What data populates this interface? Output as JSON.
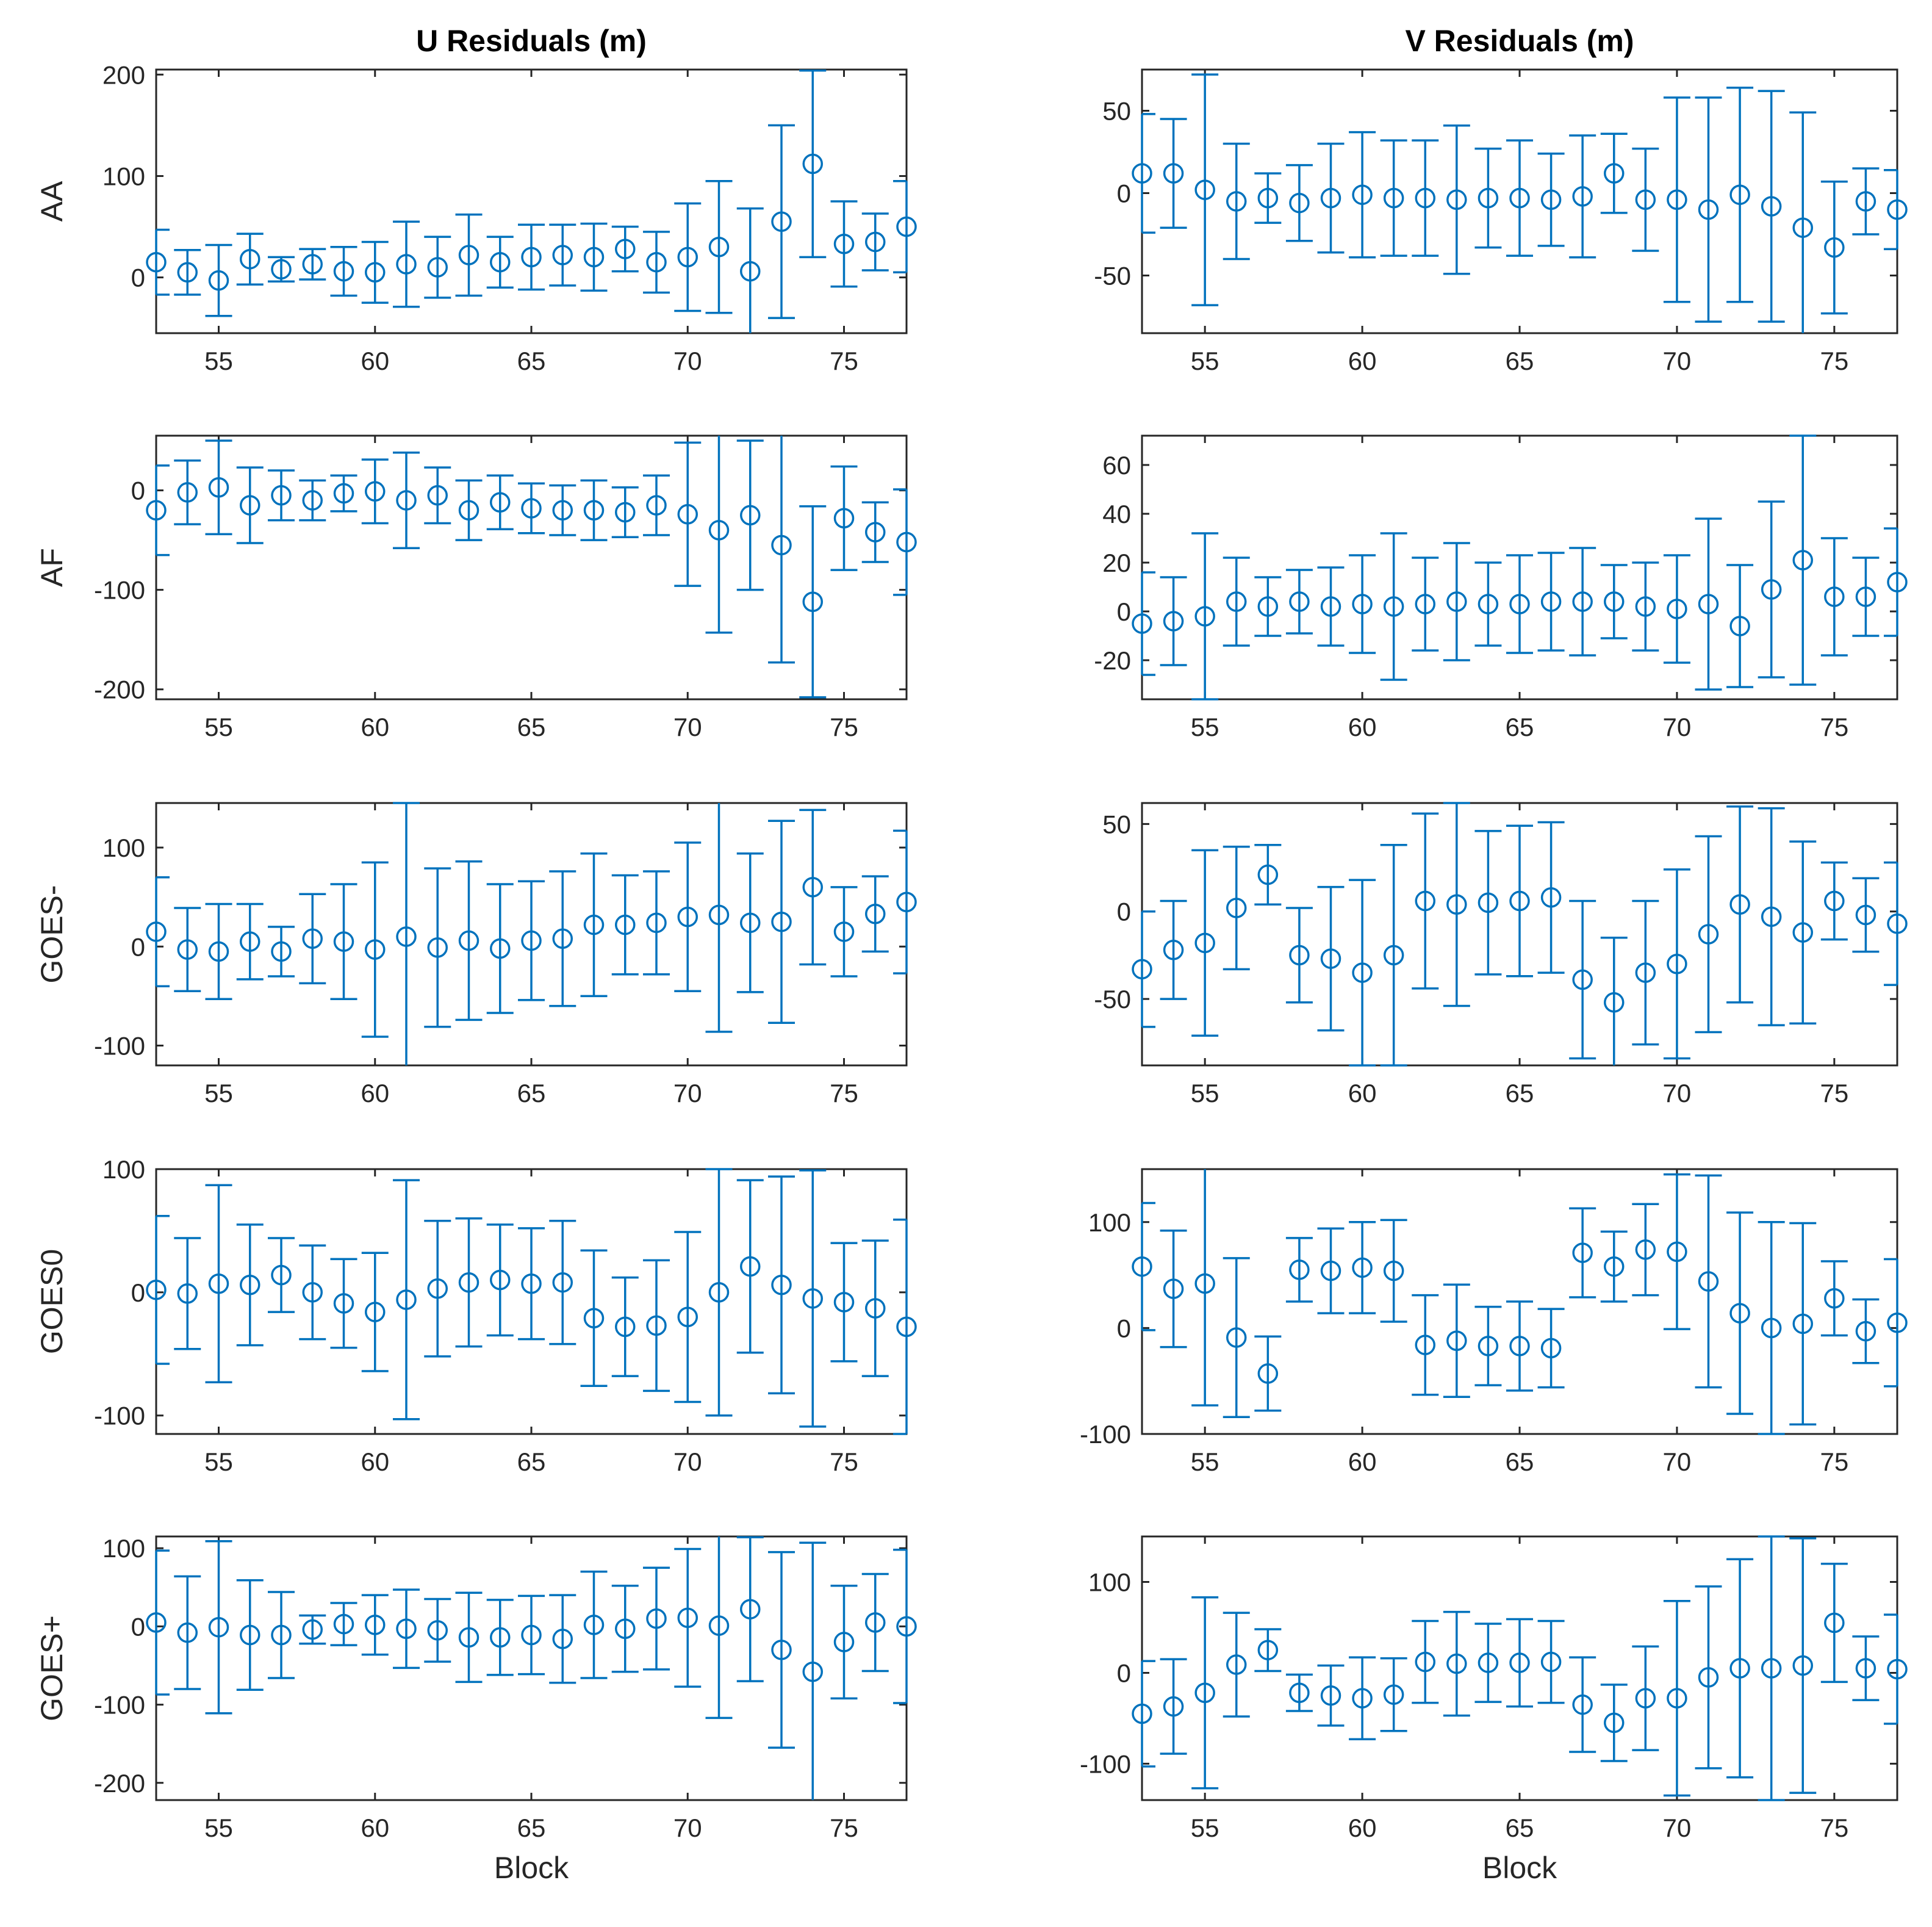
{
  "chart_data": [
    {
      "id": "u-aa",
      "type": "errorbar",
      "column_title": "U Residuals (m)",
      "ylabel": "AA",
      "xlabel": "",
      "xlim": [
        53,
        77
      ],
      "ylim": [
        -55,
        205
      ],
      "xticks": [
        55,
        60,
        65,
        70,
        75
      ],
      "yticks": [
        0,
        100,
        200
      ],
      "color": "#0072BD",
      "x": [
        53,
        54,
        55,
        56,
        57,
        58,
        59,
        60,
        61,
        62,
        63,
        64,
        65,
        66,
        67,
        68,
        69,
        70,
        71,
        72,
        73,
        74,
        75,
        76,
        77
      ],
      "y": [
        15,
        5,
        -3,
        18,
        8,
        13,
        6,
        5,
        13,
        10,
        22,
        15,
        20,
        22,
        20,
        28,
        15,
        20,
        30,
        6,
        55,
        112,
        33,
        35,
        50
      ],
      "err": [
        32,
        22,
        35,
        25,
        12,
        15,
        24,
        30,
        42,
        30,
        40,
        25,
        32,
        30,
        33,
        22,
        30,
        53,
        65,
        62,
        95,
        92,
        42,
        28,
        45
      ]
    },
    {
      "id": "v-aa",
      "type": "errorbar",
      "column_title": "V Residuals (m)",
      "ylabel": "",
      "xlabel": "",
      "xlim": [
        53,
        77
      ],
      "ylim": [
        -85,
        75
      ],
      "xticks": [
        55,
        60,
        65,
        70,
        75
      ],
      "yticks": [
        -50,
        0,
        50
      ],
      "color": "#0072BD",
      "x": [
        53,
        54,
        55,
        56,
        57,
        58,
        59,
        60,
        61,
        62,
        63,
        64,
        65,
        66,
        67,
        68,
        69,
        70,
        71,
        72,
        73,
        74,
        75,
        76,
        77
      ],
      "y": [
        12,
        12,
        2,
        -5,
        -3,
        -6,
        -3,
        -1,
        -3,
        -3,
        -4,
        -3,
        -3,
        -4,
        -2,
        12,
        -4,
        -4,
        -10,
        -1,
        -8,
        -21,
        -33,
        -5,
        -10
      ],
      "err": [
        36,
        33,
        70,
        35,
        15,
        23,
        33,
        38,
        35,
        35,
        45,
        30,
        35,
        28,
        37,
        24,
        31,
        62,
        68,
        65,
        70,
        70,
        40,
        20,
        24
      ]
    },
    {
      "id": "u-af",
      "type": "errorbar",
      "ylabel": "AF",
      "xlabel": "",
      "xlim": [
        53,
        77
      ],
      "ylim": [
        -210,
        55
      ],
      "xticks": [
        55,
        60,
        65,
        70,
        75
      ],
      "yticks": [
        -200,
        -100,
        0
      ],
      "color": "#0072BD",
      "x": [
        53,
        54,
        55,
        56,
        57,
        58,
        59,
        60,
        61,
        62,
        63,
        64,
        65,
        66,
        67,
        68,
        69,
        70,
        71,
        72,
        73,
        74,
        75,
        76,
        77
      ],
      "y": [
        -20,
        -2,
        3,
        -15,
        -5,
        -10,
        -3,
        -1,
        -10,
        -5,
        -20,
        -12,
        -18,
        -20,
        -20,
        -22,
        -15,
        -24,
        -40,
        -25,
        -55,
        -112,
        -28,
        -42,
        -52
      ],
      "err": [
        45,
        32,
        47,
        38,
        25,
        20,
        18,
        32,
        48,
        28,
        30,
        27,
        25,
        25,
        30,
        25,
        30,
        72,
        103,
        75,
        118,
        96,
        52,
        30,
        53
      ]
    },
    {
      "id": "v-af",
      "type": "errorbar",
      "ylabel": "",
      "xlabel": "",
      "xlim": [
        53,
        77
      ],
      "ylim": [
        -36,
        72
      ],
      "xticks": [
        55,
        60,
        65,
        70,
        75
      ],
      "yticks": [
        -20,
        0,
        20,
        40,
        60
      ],
      "color": "#0072BD",
      "x": [
        53,
        54,
        55,
        56,
        57,
        58,
        59,
        60,
        61,
        62,
        63,
        64,
        65,
        66,
        67,
        68,
        69,
        70,
        71,
        72,
        73,
        74,
        75,
        76,
        77
      ],
      "y": [
        -5,
        -4,
        -2,
        4,
        2,
        4,
        2,
        3,
        2,
        3,
        4,
        3,
        3,
        4,
        4,
        4,
        2,
        1,
        3,
        -6,
        9,
        21,
        6,
        6,
        12
      ],
      "err": [
        21,
        18,
        34,
        18,
        12,
        13,
        16,
        20,
        30,
        19,
        24,
        17,
        20,
        20,
        22,
        15,
        18,
        22,
        35,
        25,
        36,
        51,
        24,
        16,
        22
      ]
    },
    {
      "id": "u-goes-minus",
      "type": "errorbar",
      "ylabel": "GOES-",
      "xlabel": "",
      "xlim": [
        53,
        77
      ],
      "ylim": [
        -120,
        145
      ],
      "xticks": [
        55,
        60,
        65,
        70,
        75
      ],
      "yticks": [
        -100,
        0,
        100
      ],
      "color": "#0072BD",
      "x": [
        53,
        54,
        55,
        56,
        57,
        58,
        59,
        60,
        61,
        62,
        63,
        64,
        65,
        66,
        67,
        68,
        69,
        70,
        71,
        72,
        73,
        74,
        75,
        76,
        77
      ],
      "y": [
        15,
        -3,
        -5,
        5,
        -5,
        8,
        5,
        -3,
        10,
        -1,
        6,
        -2,
        6,
        8,
        22,
        22,
        24,
        30,
        32,
        24,
        25,
        60,
        15,
        33,
        45
      ],
      "err": [
        55,
        42,
        48,
        38,
        25,
        45,
        58,
        88,
        135,
        80,
        80,
        65,
        60,
        68,
        72,
        50,
        52,
        75,
        118,
        70,
        102,
        78,
        45,
        38,
        72
      ]
    },
    {
      "id": "v-goes-minus",
      "type": "errorbar",
      "ylabel": "",
      "xlabel": "",
      "xlim": [
        53,
        77
      ],
      "ylim": [
        -88,
        62
      ],
      "xticks": [
        55,
        60,
        65,
        70,
        75
      ],
      "yticks": [
        -50,
        0,
        50
      ],
      "color": "#0072BD",
      "x": [
        53,
        54,
        55,
        56,
        57,
        58,
        59,
        60,
        61,
        62,
        63,
        64,
        65,
        66,
        67,
        68,
        69,
        70,
        71,
        72,
        73,
        74,
        75,
        76,
        77
      ],
      "y": [
        -33,
        -22,
        -18,
        2,
        21,
        -25,
        -27,
        -35,
        -25,
        6,
        4,
        5,
        6,
        8,
        -39,
        -52,
        -35,
        -30,
        -13,
        4,
        -3,
        -12,
        6,
        -2,
        -7
      ],
      "err": [
        33,
        28,
        53,
        35,
        17,
        27,
        41,
        53,
        63,
        50,
        58,
        41,
        43,
        43,
        45,
        37,
        41,
        54,
        56,
        56,
        62,
        52,
        22,
        21,
        35
      ]
    },
    {
      "id": "u-goes0",
      "type": "errorbar",
      "ylabel": "GOES0",
      "xlabel": "",
      "xlim": [
        53,
        77
      ],
      "ylim": [
        -115,
        100
      ],
      "xticks": [
        55,
        60,
        65,
        70,
        75
      ],
      "yticks": [
        -100,
        0,
        100
      ],
      "color": "#0072BD",
      "x": [
        53,
        54,
        55,
        56,
        57,
        58,
        59,
        60,
        61,
        62,
        63,
        64,
        65,
        66,
        67,
        68,
        69,
        70,
        71,
        72,
        73,
        74,
        75,
        76,
        77
      ],
      "y": [
        2,
        -1,
        7,
        6,
        14,
        0,
        -9,
        -16,
        -6,
        3,
        8,
        10,
        7,
        8,
        -21,
        -28,
        -27,
        -20,
        0,
        21,
        6,
        -5,
        -8,
        -13,
        -28
      ],
      "err": [
        60,
        45,
        80,
        49,
        30,
        38,
        36,
        48,
        97,
        55,
        52,
        45,
        45,
        50,
        55,
        40,
        53,
        69,
        100,
        70,
        88,
        104,
        48,
        55,
        87
      ]
    },
    {
      "id": "v-goes0",
      "type": "errorbar",
      "ylabel": "",
      "xlabel": "",
      "xlim": [
        53,
        77
      ],
      "ylim": [
        -100,
        150
      ],
      "xticks": [
        55,
        60,
        65,
        70,
        75
      ],
      "yticks": [
        -100,
        0,
        100
      ],
      "color": "#0072BD",
      "x": [
        53,
        54,
        55,
        56,
        57,
        58,
        59,
        60,
        61,
        62,
        63,
        64,
        65,
        66,
        67,
        68,
        69,
        70,
        71,
        72,
        73,
        74,
        75,
        76,
        77
      ],
      "y": [
        58,
        37,
        42,
        -9,
        -43,
        55,
        54,
        57,
        54,
        -16,
        -12,
        -17,
        -17,
        -19,
        71,
        58,
        74,
        72,
        44,
        14,
        0,
        4,
        28,
        -3,
        5
      ],
      "err": [
        60,
        55,
        115,
        75,
        35,
        30,
        40,
        43,
        48,
        47,
        53,
        37,
        42,
        37,
        42,
        33,
        43,
        73,
        100,
        95,
        100,
        95,
        35,
        30,
        60
      ]
    },
    {
      "id": "u-goes-plus",
      "type": "errorbar",
      "ylabel": "GOES+",
      "xlabel": "Block",
      "xlim": [
        53,
        77
      ],
      "ylim": [
        -222,
        115
      ],
      "xticks": [
        55,
        60,
        65,
        70,
        75
      ],
      "yticks": [
        -200,
        -100,
        0,
        100
      ],
      "color": "#0072BD",
      "x": [
        53,
        54,
        55,
        56,
        57,
        58,
        59,
        60,
        61,
        62,
        63,
        64,
        65,
        66,
        67,
        68,
        69,
        70,
        71,
        72,
        73,
        74,
        75,
        76,
        77
      ],
      "y": [
        5,
        -8,
        -1,
        -11,
        -11,
        -4,
        3,
        2,
        -3,
        -5,
        -14,
        -14,
        -11,
        -16,
        2,
        -3,
        10,
        11,
        1,
        22,
        -30,
        -58,
        -20,
        5,
        0
      ],
      "err": [
        92,
        72,
        110,
        70,
        55,
        18,
        27,
        38,
        50,
        40,
        57,
        48,
        50,
        56,
        68,
        55,
        65,
        88,
        118,
        92,
        125,
        165,
        72,
        62,
        98
      ]
    },
    {
      "id": "v-goes-plus",
      "type": "errorbar",
      "ylabel": "",
      "xlabel": "Block",
      "xlim": [
        53,
        77
      ],
      "ylim": [
        -140,
        150
      ],
      "xticks": [
        55,
        60,
        65,
        70,
        75
      ],
      "yticks": [
        -100,
        0,
        100
      ],
      "color": "#0072BD",
      "x": [
        53,
        54,
        55,
        56,
        57,
        58,
        59,
        60,
        61,
        62,
        63,
        64,
        65,
        66,
        67,
        68,
        69,
        70,
        71,
        72,
        73,
        74,
        75,
        76,
        77
      ],
      "y": [
        -45,
        -37,
        -22,
        9,
        25,
        -22,
        -25,
        -28,
        -24,
        12,
        10,
        11,
        11,
        12,
        -35,
        -55,
        -28,
        -28,
        -5,
        5,
        5,
        8,
        55,
        5,
        4
      ],
      "err": [
        58,
        52,
        105,
        57,
        23,
        20,
        33,
        45,
        40,
        45,
        57,
        43,
        48,
        45,
        52,
        42,
        57,
        107,
        100,
        120,
        145,
        140,
        65,
        35,
        60
      ]
    }
  ]
}
